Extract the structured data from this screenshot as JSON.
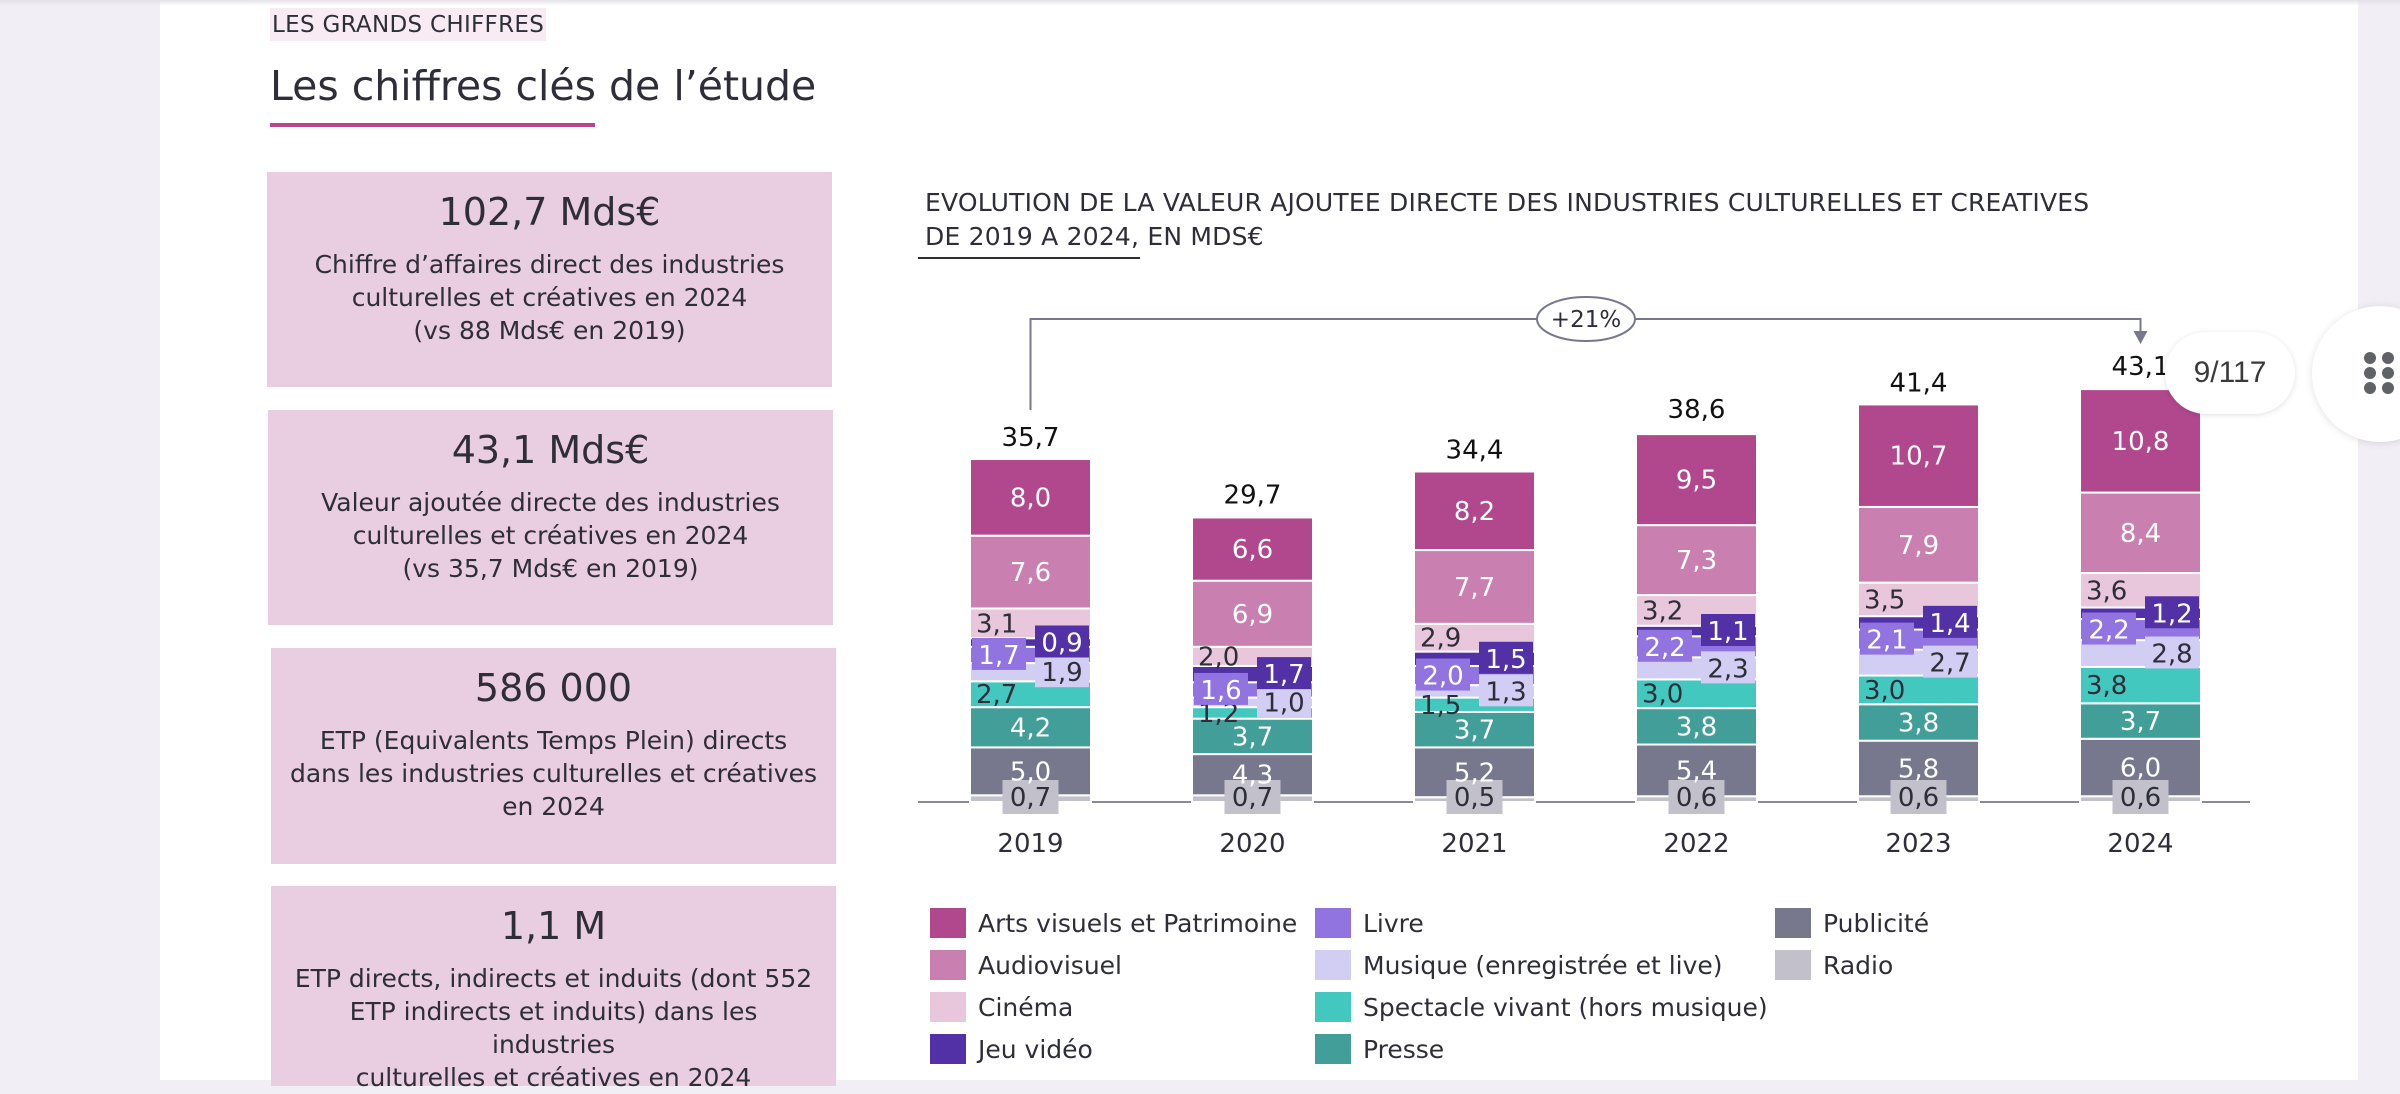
{
  "header": {
    "kicker": "LES GRANDS CHIFFRES",
    "title": "Les chiffres clés de l’étude"
  },
  "cards": [
    {
      "value": "102,7 Mds€",
      "lines": [
        "Chiffre d’affaires direct des industries",
        "culturelles et créatives en 2024",
        "(vs 88 Mds€ en 2019)"
      ]
    },
    {
      "value": "43,1 Mds€",
      "lines": [
        "Valeur ajoutée directe des industries",
        "culturelles et créatives en 2024",
        "(vs 35,7 Mds€ en 2019)"
      ]
    },
    {
      "value": "586 000",
      "lines": [
        "ETP (Equivalents Temps Plein) directs",
        "dans les industries culturelles et créatives",
        "en 2024"
      ]
    },
    {
      "value": "1,1 M",
      "lines": [
        "ETP directs, indirects et induits (dont 552",
        "ETP indirects et induits) dans les industries",
        "culturelles et créatives en 2024"
      ]
    }
  ],
  "viewer": {
    "page_counter": "9/117",
    "handle_icon": "drag-handle-icon"
  },
  "chart_data": {
    "type": "bar",
    "stacked": true,
    "title_line1": "EVOLUTION DE LA VALEUR AJOUTEE DIRECTE DES INDUSTRIES CULTURELLES ET CREATIVES",
    "title_line2": "DE 2019 A 2024, EN MDS€",
    "xlabel": "",
    "ylabel": "",
    "categories": [
      "2019",
      "2020",
      "2021",
      "2022",
      "2023",
      "2024"
    ],
    "totals": [
      "35,7",
      "29,7",
      "34,4",
      "38,6",
      "41,4",
      "43,1"
    ],
    "total_values": [
      35.7,
      29.7,
      34.4,
      38.6,
      41.4,
      43.1
    ],
    "growth_annotation": {
      "label": "+21%",
      "from": "2019",
      "to": "2024"
    },
    "ylim": [
      0,
      45
    ],
    "grid": false,
    "legend_position": "bottom",
    "series": [
      {
        "name": "Radio",
        "color": "#c2c1cb",
        "values": [
          0.7,
          0.7,
          0.5,
          0.6,
          0.6,
          0.6
        ]
      },
      {
        "name": "Publicité",
        "color": "#77778e",
        "values": [
          5.0,
          4.3,
          5.2,
          5.4,
          5.8,
          6.0
        ]
      },
      {
        "name": "Presse",
        "color": "#429e99",
        "values": [
          4.2,
          3.7,
          3.7,
          3.8,
          3.8,
          3.7
        ]
      },
      {
        "name": "Spectacle vivant (hors musique)",
        "color": "#43c8c0",
        "values": [
          2.7,
          1.2,
          1.5,
          3.0,
          3.0,
          3.8
        ]
      },
      {
        "name": "Musique (enregistrée et live)",
        "color": "#d1cdf3",
        "values": [
          1.9,
          1.0,
          1.3,
          2.3,
          2.7,
          2.8
        ]
      },
      {
        "name": "Livre",
        "color": "#9274e1",
        "values": [
          1.7,
          1.6,
          2.0,
          2.2,
          2.1,
          2.2
        ]
      },
      {
        "name": "Jeu vidéo",
        "color": "#5230a6",
        "values": [
          0.9,
          1.7,
          1.5,
          1.1,
          1.4,
          1.2
        ]
      },
      {
        "name": "Cinéma",
        "color": "#e8c7dd",
        "values": [
          3.1,
          2.0,
          2.9,
          3.2,
          3.5,
          3.6
        ]
      },
      {
        "name": "Audiovisuel",
        "color": "#c97fb0",
        "values": [
          7.6,
          6.9,
          7.7,
          7.3,
          7.9,
          8.4
        ]
      },
      {
        "name": "Arts visuels et Patrimoine",
        "color": "#b1488e",
        "values": [
          8.0,
          6.6,
          8.2,
          9.5,
          10.7,
          10.8
        ]
      }
    ],
    "legend": [
      {
        "name": "Arts visuels et Patrimoine",
        "color": "#b1488e"
      },
      {
        "name": "Audiovisuel",
        "color": "#c97fb0"
      },
      {
        "name": "Cinéma",
        "color": "#e8c7dd"
      },
      {
        "name": "Jeu vidéo",
        "color": "#5230a6"
      },
      {
        "name": "Livre",
        "color": "#9274e1"
      },
      {
        "name": "Musique (enregistrée et live)",
        "color": "#d1cdf3"
      },
      {
        "name": "Spectacle vivant (hors musique)",
        "color": "#43c8c0"
      },
      {
        "name": "Presse",
        "color": "#429e99"
      },
      {
        "name": "Publicité",
        "color": "#77778e"
      },
      {
        "name": "Radio",
        "color": "#c2c1cb"
      }
    ]
  }
}
